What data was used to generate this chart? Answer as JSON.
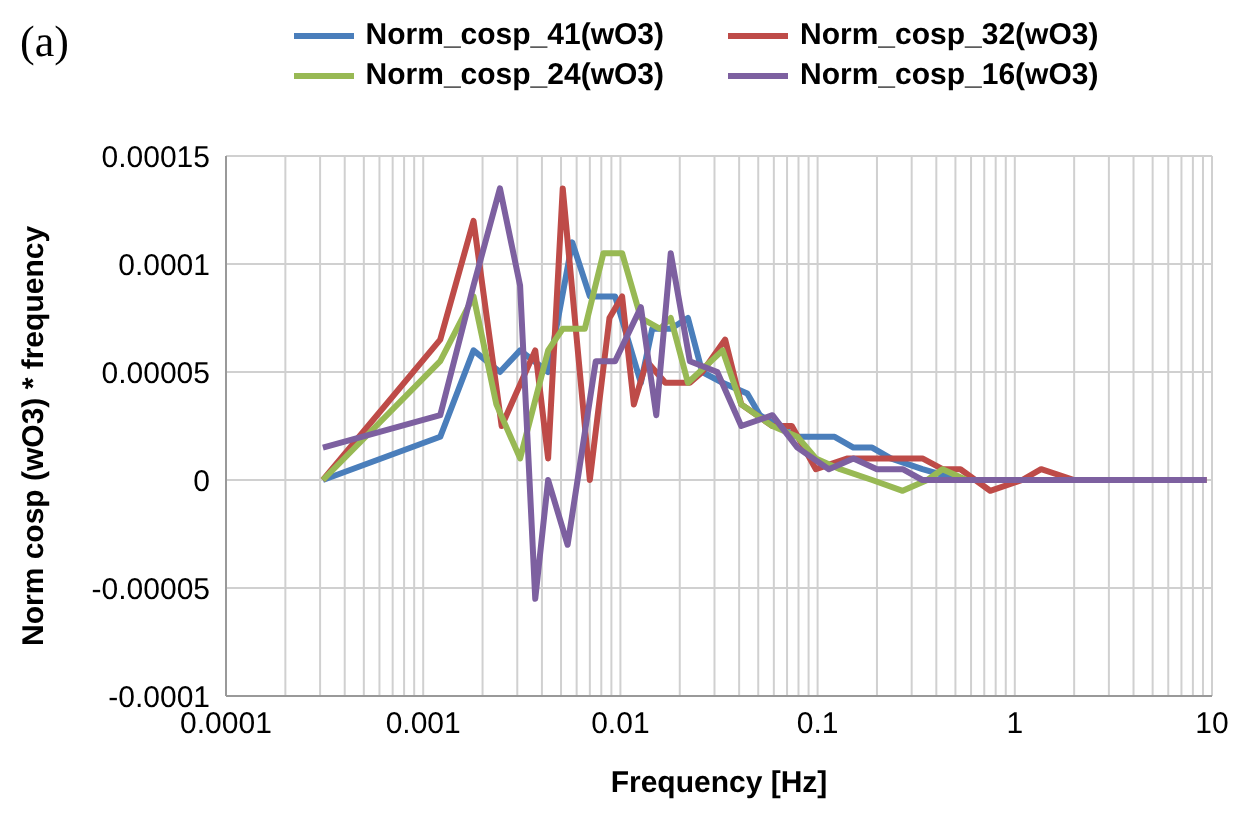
{
  "chart_data": {
    "type": "line",
    "title": "(a)",
    "xlabel": "Frequency [Hz]",
    "ylabel": "Norm cosp (wO3) * frequency",
    "log": "x",
    "grid": true,
    "legend": "top",
    "xlim": [
      0.0001,
      10
    ],
    "xticks": [
      0.0001,
      {
        "value": 0.0002,
        "label": null
      },
      {
        "value": 0.0003,
        "label": null
      },
      {
        "value": 0.0004,
        "label": null
      },
      {
        "value": 0.0005,
        "label": null
      },
      {
        "value": 0.0006,
        "label": null
      },
      {
        "value": 0.0007,
        "label": null
      },
      {
        "value": 0.0008,
        "label": null
      },
      {
        "value": 0.0009,
        "label": null
      },
      0.001,
      {
        "value": 0.002,
        "label": null
      },
      {
        "value": 0.003,
        "label": null
      },
      {
        "value": 0.004,
        "label": null
      },
      {
        "value": 0.005,
        "label": null
      },
      {
        "value": 0.006,
        "label": null
      },
      {
        "value": 0.007,
        "label": null
      },
      {
        "value": 0.008,
        "label": null
      },
      {
        "value": 0.009,
        "label": null
      },
      0.01,
      {
        "value": 0.02,
        "label": null
      },
      {
        "value": 0.03,
        "label": null
      },
      {
        "value": 0.04,
        "label": null
      },
      {
        "value": 0.05,
        "label": null
      },
      {
        "value": 0.06,
        "label": null
      },
      {
        "value": 0.07,
        "label": null
      },
      {
        "value": 0.08,
        "label": null
      },
      {
        "value": 0.09,
        "label": null
      },
      0.1,
      {
        "value": 0.2,
        "label": null
      },
      {
        "value": 0.3,
        "label": null
      },
      {
        "value": 0.4,
        "label": null
      },
      {
        "value": 0.5,
        "label": null
      },
      {
        "value": 0.6,
        "label": null
      },
      {
        "value": 0.7,
        "label": null
      },
      {
        "value": 0.8,
        "label": null
      },
      {
        "value": 0.9,
        "label": null
      },
      1,
      {
        "value": 2,
        "label": null
      },
      {
        "value": 3,
        "label": null
      },
      {
        "value": 4,
        "label": null
      },
      {
        "value": 5,
        "label": null
      },
      {
        "value": 6,
        "label": null
      },
      {
        "value": 7,
        "label": null
      },
      {
        "value": 8,
        "label": null
      },
      {
        "value": 9,
        "label": null
      },
      10
    ],
    "ylim": [
      -0.0001,
      0.00015
    ],
    "yticks": [
      {
        "value": -0.0001,
        "label": "-0.0001"
      },
      {
        "value": -5e-05,
        "label": "-0.00005"
      },
      {
        "value": 0,
        "label": "0"
      },
      {
        "value": 5e-05,
        "label": "0.00005"
      },
      {
        "value": 0.0001,
        "label": "0.0001"
      },
      {
        "value": 0.00015,
        "label": "0.00015"
      }
    ],
    "series": [
      {
        "name": "Norm_cosp_41(wO3)",
        "color": "#4a7ebb",
        "x": [
          0.00031,
          0.00122,
          0.0018,
          0.00245,
          0.0031,
          0.0043,
          0.0057,
          0.007,
          0.0094,
          0.0127,
          0.0145,
          0.018,
          0.022,
          0.026,
          0.033,
          0.044,
          0.051,
          0.063,
          0.079,
          0.098,
          0.122,
          0.152,
          0.189,
          0.235,
          0.34,
          0.53,
          0.75
        ],
        "values": [
          0,
          2e-05,
          6e-05,
          5e-05,
          6e-05,
          5e-05,
          0.00011,
          8.5e-05,
          8.5e-05,
          4.5e-05,
          7e-05,
          7e-05,
          7.5e-05,
          5e-05,
          4.5e-05,
          4e-05,
          3e-05,
          2.5e-05,
          2e-05,
          2e-05,
          2e-05,
          1.5e-05,
          1.5e-05,
          1e-05,
          5e-06,
          0,
          0
        ]
      },
      {
        "name": "Norm_cosp_32(wO3)",
        "color": "#be4b48",
        "x": [
          0.00031,
          0.00122,
          0.0018,
          0.0025,
          0.0037,
          0.0043,
          0.0051,
          0.007,
          0.0088,
          0.0102,
          0.0117,
          0.0136,
          0.0169,
          0.0225,
          0.026,
          0.034,
          0.041,
          0.059,
          0.074,
          0.098,
          0.142,
          0.189,
          0.25,
          0.34,
          0.43,
          0.53,
          0.75,
          1.09,
          1.36,
          2,
          4,
          9.4
        ],
        "values": [
          0,
          6.5e-05,
          0.00012,
          2.5e-05,
          6e-05,
          1e-05,
          0.000135,
          0,
          7.5e-05,
          8.5e-05,
          3.5e-05,
          5.5e-05,
          4.5e-05,
          4.5e-05,
          5e-05,
          6.5e-05,
          3.5e-05,
          2.5e-05,
          2.5e-05,
          5e-06,
          1e-05,
          1e-05,
          1e-05,
          1e-05,
          5e-06,
          5e-06,
          -5e-06,
          0,
          5e-06,
          0,
          0,
          0
        ]
      },
      {
        "name": "Norm_cosp_24(wO3)",
        "color": "#98b954",
        "x": [
          0.00031,
          0.00122,
          0.0018,
          0.00235,
          0.0031,
          0.0043,
          0.0051,
          0.0066,
          0.0082,
          0.0102,
          0.0127,
          0.0159,
          0.018,
          0.022,
          0.033,
          0.041,
          0.059,
          0.079,
          0.098,
          0.13,
          0.189,
          0.27,
          0.36,
          0.43,
          0.57,
          0.75,
          1.1
        ],
        "values": [
          0,
          5.5e-05,
          8.5e-05,
          3.5e-05,
          1e-05,
          6e-05,
          7e-05,
          7e-05,
          0.000105,
          0.000105,
          7.5e-05,
          7e-05,
          7.5e-05,
          4.5e-05,
          6e-05,
          3.5e-05,
          2.5e-05,
          2e-05,
          1e-05,
          5e-06,
          0,
          -5e-06,
          0,
          5e-06,
          0,
          0,
          0
        ]
      },
      {
        "name": "Norm_cosp_16(wO3)",
        "color": "#7d60a0",
        "x": [
          0.00031,
          0.00122,
          0.0018,
          0.00245,
          0.0031,
          0.0037,
          0.0043,
          0.0054,
          0.0075,
          0.0094,
          0.0127,
          0.0152,
          0.018,
          0.0225,
          0.031,
          0.041,
          0.059,
          0.079,
          0.114,
          0.152,
          0.2,
          0.22,
          0.27,
          0.34,
          0.43,
          0.75,
          1.1,
          2,
          4,
          9.4
        ],
        "values": [
          1.5e-05,
          3e-05,
          9e-05,
          0.000135,
          9e-05,
          -5.5e-05,
          0,
          -3e-05,
          5.5e-05,
          5.5e-05,
          8e-05,
          3e-05,
          0.000105,
          5.5e-05,
          5e-05,
          2.5e-05,
          3e-05,
          1.5e-05,
          5e-06,
          1e-05,
          5e-06,
          5e-06,
          5e-06,
          0,
          0,
          0,
          0,
          0,
          0,
          0
        ]
      }
    ]
  }
}
